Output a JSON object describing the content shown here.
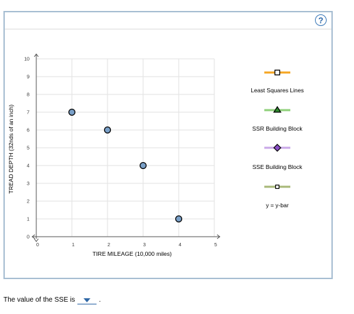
{
  "help": {
    "label": "?"
  },
  "chart_data": {
    "type": "scatter",
    "xlabel": "TIRE MILEAGE (10,000 miles)",
    "ylabel": "TREAD DEPTH (32nds of an inch)",
    "xlim": [
      0,
      5
    ],
    "ylim": [
      0,
      10
    ],
    "x_ticks": [
      "0",
      "1",
      "2",
      "3",
      "4",
      "5"
    ],
    "y_ticks": [
      "0",
      "1",
      "2",
      "3",
      "4",
      "5",
      "6",
      "7",
      "8",
      "9",
      "10"
    ],
    "grid": true,
    "points": [
      {
        "x": 1,
        "y": 7
      },
      {
        "x": 2,
        "y": 6
      },
      {
        "x": 3,
        "y": 4
      },
      {
        "x": 4,
        "y": 1
      }
    ],
    "point_color": "#7aa0c8"
  },
  "legend": {
    "items": [
      {
        "label": "Least Squares Lines",
        "line_color": "#f5a623",
        "marker": "square",
        "marker_fill": "#ffffff",
        "marker_stroke": "#000000"
      },
      {
        "label": "SSR Building Block",
        "line_color": "#8fd07a",
        "marker": "triangle",
        "marker_fill": "#2f8a2f",
        "marker_stroke": "#000000"
      },
      {
        "label": "SSE Building Block",
        "line_color": "#c9a8e8",
        "marker": "diamond",
        "marker_fill": "#8a4fc7",
        "marker_stroke": "#000000"
      },
      {
        "label": "y = y-bar",
        "line_color": "#a8b878",
        "marker": "square-small",
        "marker_fill": "#ffffff",
        "marker_stroke": "#000000"
      }
    ]
  },
  "footer": {
    "text": "The value of the SSE is",
    "period": "."
  }
}
